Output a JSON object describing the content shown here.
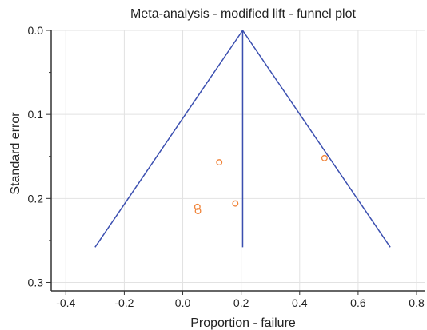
{
  "chart_data": {
    "type": "scatter",
    "title": "Meta-analysis - modified lift - funnel plot",
    "xlabel": "Proportion - failure",
    "ylabel": "Standard error",
    "xlim": [
      -0.45,
      0.83
    ],
    "ylim": [
      0.0,
      0.31
    ],
    "y_inverted": true,
    "grid": true,
    "x_ticks": [
      -0.4,
      -0.2,
      0.0,
      0.2,
      0.4,
      0.6,
      0.8
    ],
    "x_tick_labels": [
      "-0.4",
      "-0.2",
      "0.0",
      "0.2",
      "0.4",
      "0.6",
      "0.8"
    ],
    "y_major_ticks": [
      0.0,
      0.1,
      0.2,
      0.3
    ],
    "y_tick_labels": [
      "0.0",
      "0.1",
      "0.2",
      "0.3"
    ],
    "y_minor_ticks": [
      0.05,
      0.15,
      0.25
    ],
    "pooled_estimate": 0.205,
    "funnel": {
      "apex": [
        0.205,
        0.0
      ],
      "left_base": [
        -0.3,
        0.258
      ],
      "right_base": [
        0.71,
        0.258
      ],
      "center_line_bottom": 0.258
    },
    "points": [
      {
        "x": 0.125,
        "y": 0.157
      },
      {
        "x": 0.485,
        "y": 0.152
      },
      {
        "x": 0.18,
        "y": 0.206
      },
      {
        "x": 0.05,
        "y": 0.21
      },
      {
        "x": 0.052,
        "y": 0.215
      }
    ],
    "colors": {
      "funnel": "#3b4fb0",
      "points": "#f0843a",
      "grid": "#e2e2e2",
      "axis": "#333333"
    }
  }
}
